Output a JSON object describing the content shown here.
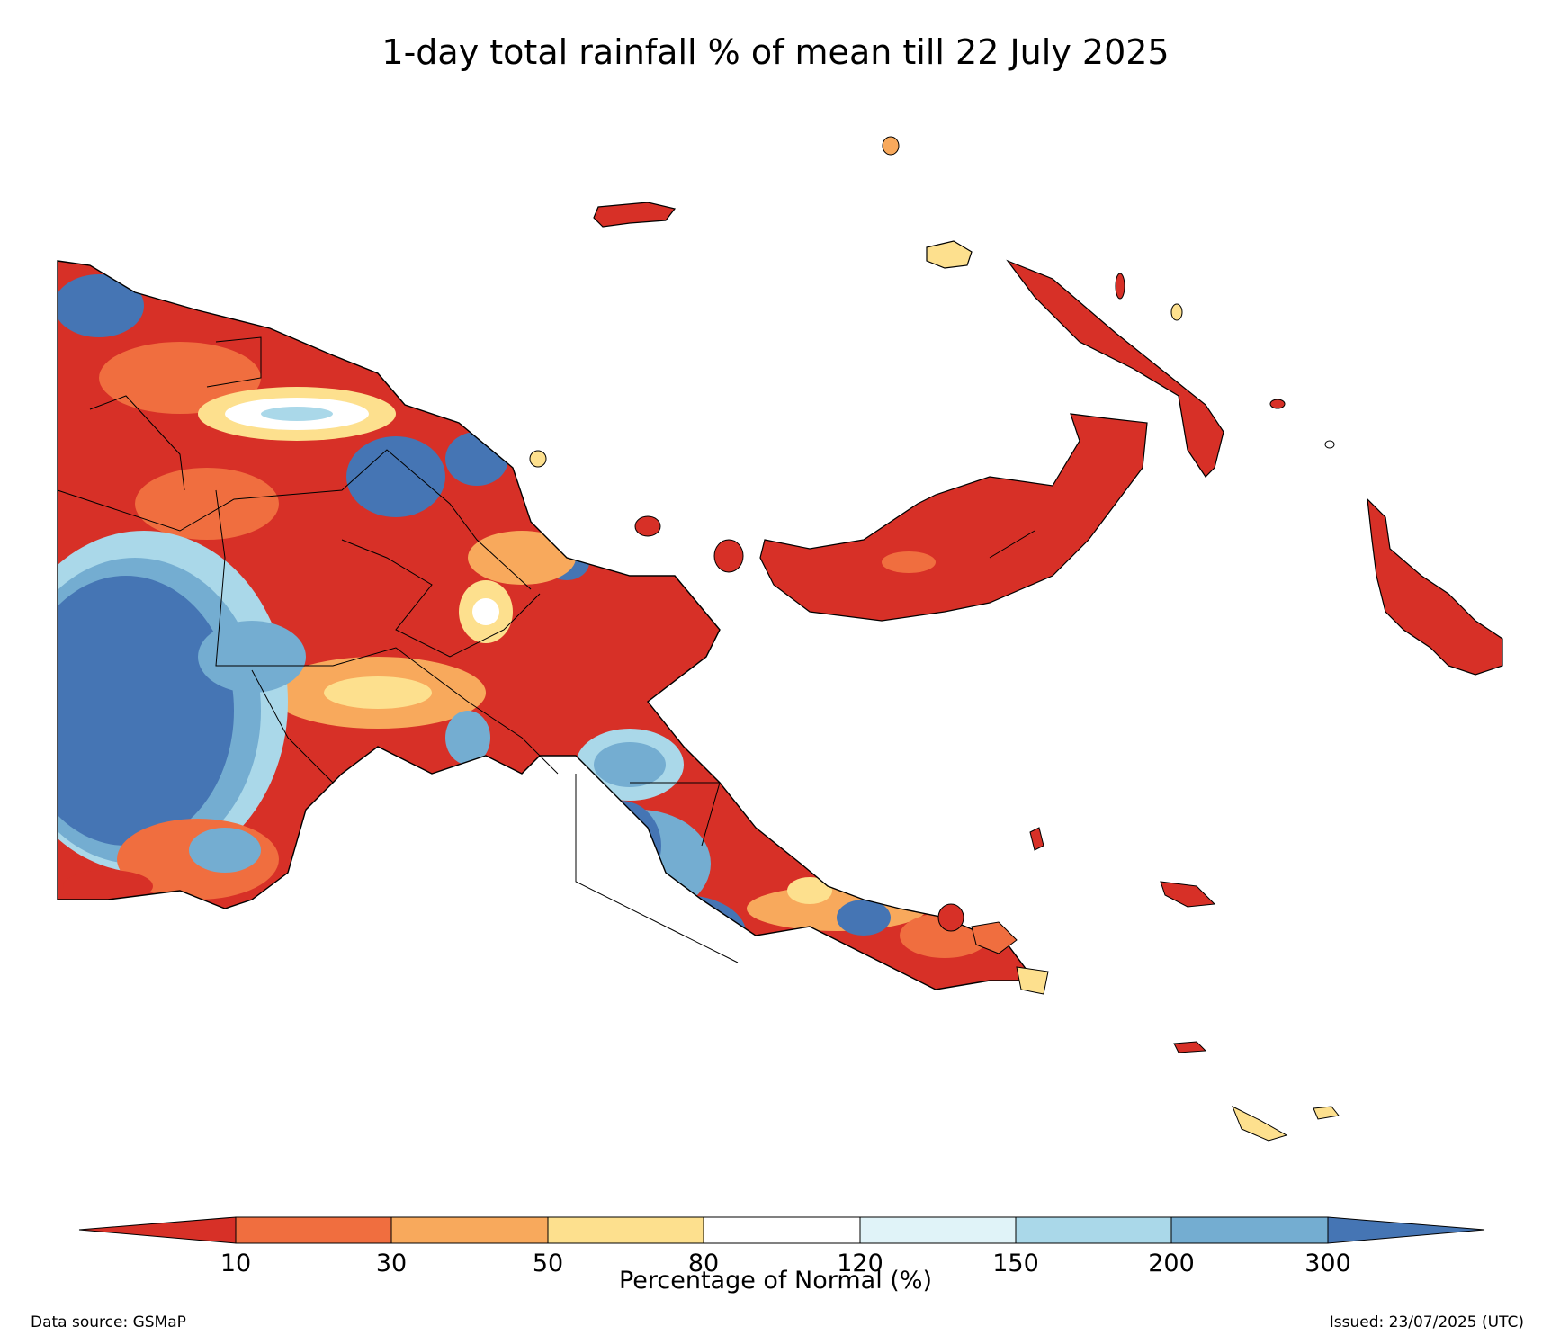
{
  "title": "1-day total rainfall % of mean till 22 July 2025",
  "legend": {
    "label": "Percentage of Normal (%)",
    "ticks": [
      "10",
      "30",
      "50",
      "80",
      "120",
      "150",
      "200",
      "300"
    ],
    "colors": [
      "#d73027",
      "#f06e3f",
      "#f8a95c",
      "#fde08e",
      "#ffffff",
      "#e0f3f8",
      "#aad8e9",
      "#74add1",
      "#4575b4"
    ]
  },
  "footer": {
    "source": "Data source: GSMaP",
    "issued": "Issued: 23/07/2025 (UTC)"
  }
}
